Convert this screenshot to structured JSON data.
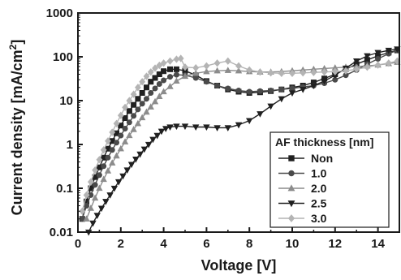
{
  "chart_data": {
    "type": "scatter",
    "xlabel": "Voltage [V]",
    "ylabel_main": "Current density [mA/cm",
    "ylabel_sup": "2",
    "ylabel_end": "]",
    "y_scale": "log",
    "xlim": [
      0,
      15
    ],
    "ylim": [
      0.01,
      1000
    ],
    "x_ticks": [
      "0",
      "2",
      "4",
      "6",
      "8",
      "10",
      "12",
      "14"
    ],
    "y_ticks": [
      "0.01",
      "0.1",
      "1",
      "10",
      "100",
      "1000"
    ],
    "legend": {
      "title": "AF thickness [nm]",
      "placement": "lower-right"
    },
    "series": [
      {
        "name": "Non",
        "marker": "square",
        "color": "#202020",
        "x": [
          0.2,
          0.4,
          0.6,
          0.8,
          1.0,
          1.2,
          1.4,
          1.6,
          1.8,
          2.0,
          2.2,
          2.4,
          2.6,
          2.8,
          3.0,
          3.2,
          3.4,
          3.6,
          3.8,
          4.0,
          4.3,
          4.6,
          5.0,
          5.5,
          6.0,
          6.5,
          7.0,
          7.5,
          8.0,
          8.5,
          9.0,
          9.5,
          10.0,
          10.5,
          11.0,
          11.5,
          12.0,
          12.5,
          13.0,
          13.5,
          14.0,
          14.5,
          14.9
        ],
        "y": [
          0.02,
          0.05,
          0.1,
          0.18,
          0.3,
          0.5,
          0.8,
          1.2,
          1.8,
          2.7,
          4,
          5.8,
          8,
          11,
          15,
          20,
          27,
          33,
          40,
          47,
          52,
          52,
          48,
          38,
          28,
          22,
          18,
          16,
          15,
          15.5,
          16.5,
          18,
          20,
          22,
          26,
          32,
          40,
          52,
          68,
          85,
          105,
          125,
          140
        ]
      },
      {
        "name": "1.0",
        "marker": "circle",
        "color": "#4a4a4a",
        "x": [
          0.2,
          0.4,
          0.6,
          0.8,
          1.0,
          1.2,
          1.4,
          1.6,
          1.8,
          2.0,
          2.2,
          2.4,
          2.6,
          2.8,
          3.0,
          3.2,
          3.4,
          3.6,
          3.8,
          4.0,
          4.3,
          4.6,
          5.0,
          5.5,
          6.0,
          6.5,
          7.0,
          7.5,
          8.0,
          8.5,
          9.0,
          9.5,
          10.0,
          10.5,
          11.0,
          11.5,
          12.0,
          12.5,
          13.0,
          13.5,
          14.0,
          14.5,
          14.9
        ],
        "y": [
          0.02,
          0.04,
          0.07,
          0.12,
          0.2,
          0.32,
          0.5,
          0.75,
          1.1,
          1.6,
          2.3,
          3.2,
          4.5,
          6.3,
          8.5,
          11,
          15,
          19,
          24,
          29,
          35,
          39,
          38,
          33,
          27,
          22,
          19,
          17,
          16,
          16.5,
          17,
          18,
          19,
          20.5,
          22,
          25,
          30,
          38,
          50,
          68,
          90,
          118,
          140
        ]
      },
      {
        "name": "2.0",
        "marker": "triangle-up",
        "color": "#8c8c8c",
        "x": [
          0.4,
          0.6,
          0.8,
          1.0,
          1.2,
          1.4,
          1.6,
          1.8,
          2.0,
          2.2,
          2.4,
          2.6,
          2.8,
          3.0,
          3.2,
          3.4,
          3.6,
          3.8,
          4.0,
          4.3,
          4.6,
          5.0,
          5.5,
          6.0,
          6.5,
          7.0,
          7.5,
          8.0,
          8.5,
          9.0,
          9.5,
          10.0,
          10.5,
          11.0,
          11.5,
          12.0,
          12.5,
          13.0,
          13.5,
          14.0,
          14.5,
          14.9
        ],
        "y": [
          0.02,
          0.035,
          0.06,
          0.1,
          0.16,
          0.25,
          0.38,
          0.55,
          0.8,
          1.15,
          1.6,
          2.2,
          3.0,
          4.1,
          5.5,
          7.2,
          9.5,
          12.5,
          16,
          21,
          28,
          36,
          42,
          46,
          48,
          49,
          48,
          46,
          45,
          45,
          46,
          48,
          50,
          52,
          54,
          56,
          58,
          60,
          62,
          65,
          70,
          75
        ]
      },
      {
        "name": "2.5",
        "marker": "triangle-down",
        "color": "#202020",
        "x": [
          0.5,
          0.7,
          0.9,
          1.1,
          1.3,
          1.5,
          1.7,
          1.9,
          2.1,
          2.3,
          2.5,
          2.7,
          2.9,
          3.1,
          3.3,
          3.5,
          3.7,
          3.9,
          4.1,
          4.3,
          4.6,
          5.0,
          5.5,
          6.0,
          6.5,
          7.0,
          7.5,
          8.0,
          8.5,
          9.0,
          9.5,
          10.0,
          10.5,
          11.0,
          11.5,
          12.0,
          12.5,
          13.0,
          13.5,
          14.0,
          14.5,
          14.9
        ],
        "y": [
          0.01,
          0.016,
          0.024,
          0.035,
          0.05,
          0.07,
          0.1,
          0.14,
          0.19,
          0.26,
          0.35,
          0.46,
          0.6,
          0.78,
          1.0,
          1.3,
          1.6,
          2.0,
          2.3,
          2.5,
          2.6,
          2.6,
          2.5,
          2.5,
          2.4,
          2.4,
          2.8,
          3.5,
          5,
          7.5,
          11,
          15,
          18,
          22,
          28,
          38,
          55,
          80,
          105,
          125,
          140,
          150
        ]
      },
      {
        "name": "3.0",
        "marker": "diamond",
        "color": "#b4b4b4",
        "x": [
          0.2,
          0.4,
          0.6,
          0.8,
          1.0,
          1.2,
          1.4,
          1.6,
          1.8,
          2.0,
          2.2,
          2.4,
          2.6,
          2.8,
          3.0,
          3.2,
          3.4,
          3.6,
          3.8,
          4.0,
          4.3,
          4.6,
          4.8,
          5.0,
          5.5,
          6.0,
          6.5,
          7.0,
          7.5,
          8.0,
          8.5,
          9.0,
          9.5,
          10.0,
          10.5,
          11.0,
          11.5,
          12.0,
          12.5,
          13.0,
          13.5,
          14.0,
          14.5,
          14.9
        ],
        "y": [
          0.03,
          0.07,
          0.14,
          0.26,
          0.45,
          0.75,
          1.2,
          1.9,
          3,
          4.6,
          7,
          10,
          14,
          20,
          27,
          36,
          45,
          55,
          64,
          72,
          80,
          88,
          92,
          58,
          56,
          62,
          72,
          80,
          62,
          50,
          45,
          43,
          42,
          42,
          43,
          44,
          45,
          46,
          48,
          52,
          58,
          65,
          72,
          80
        ]
      }
    ]
  }
}
